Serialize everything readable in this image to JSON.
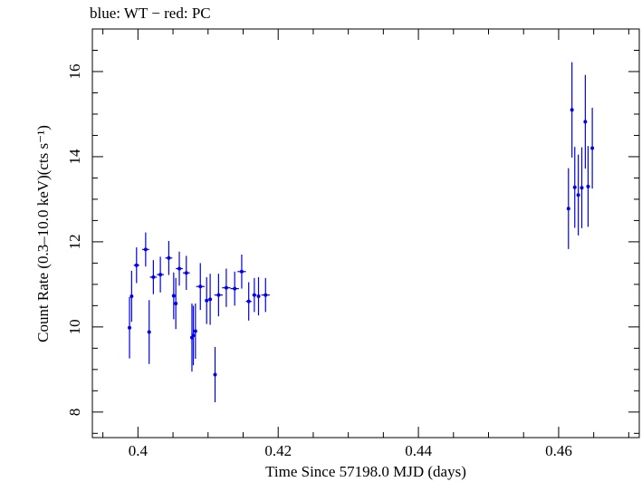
{
  "chart_data": {
    "type": "scatter",
    "title": "blue: WT − red: PC",
    "xlabel": "Time Since 57198.0 MJD (days)",
    "ylabel": "Count Rate (0.3–10.0 keV)(cts s⁻¹)",
    "xlim": [
      0.3935,
      0.4715
    ],
    "ylim": [
      7.4,
      17.0
    ],
    "x_ticks": [
      0.4,
      0.42,
      0.44,
      0.46
    ],
    "x_tick_labels": [
      "0.4",
      "0.42",
      "0.44",
      "0.46"
    ],
    "y_ticks": [
      8,
      10,
      12,
      14,
      16
    ],
    "y_tick_labels": [
      "8",
      "10",
      "12",
      "14",
      "16"
    ],
    "grid": false,
    "series": [
      {
        "name": "WT",
        "color": "#0000ee",
        "points": [
          {
            "x": 0.3988,
            "y": 9.98,
            "xerr": 0.0,
            "yerr": 0.72
          },
          {
            "x": 0.3991,
            "y": 10.72,
            "xerr": 0.0,
            "yerr": 0.6
          },
          {
            "x": 0.3998,
            "y": 11.45,
            "xerr": 0.0004,
            "yerr": 0.42
          },
          {
            "x": 0.4011,
            "y": 11.82,
            "xerr": 0.0005,
            "yerr": 0.4
          },
          {
            "x": 0.4016,
            "y": 9.88,
            "xerr": 0.0,
            "yerr": 0.75
          },
          {
            "x": 0.4022,
            "y": 11.17,
            "xerr": 0.0005,
            "yerr": 0.4
          },
          {
            "x": 0.4032,
            "y": 11.23,
            "xerr": 0.0005,
            "yerr": 0.42
          },
          {
            "x": 0.4044,
            "y": 11.62,
            "xerr": 0.0005,
            "yerr": 0.4
          },
          {
            "x": 0.4051,
            "y": 10.73,
            "xerr": 0.0,
            "yerr": 0.55
          },
          {
            "x": 0.4054,
            "y": 10.55,
            "xerr": 0.0,
            "yerr": 0.6
          },
          {
            "x": 0.4059,
            "y": 11.37,
            "xerr": 0.0005,
            "yerr": 0.4
          },
          {
            "x": 0.4069,
            "y": 11.27,
            "xerr": 0.0005,
            "yerr": 0.4
          },
          {
            "x": 0.4077,
            "y": 9.75,
            "xerr": 0.0,
            "yerr": 0.8
          },
          {
            "x": 0.4079,
            "y": 9.8,
            "xerr": 0.0,
            "yerr": 0.7
          },
          {
            "x": 0.4082,
            "y": 9.9,
            "xerr": 0.0,
            "yerr": 0.65
          },
          {
            "x": 0.4089,
            "y": 10.95,
            "xerr": 0.0006,
            "yerr": 0.55
          },
          {
            "x": 0.4098,
            "y": 10.62,
            "xerr": 0.0,
            "yerr": 0.55
          },
          {
            "x": 0.4103,
            "y": 10.65,
            "xerr": 0.0,
            "yerr": 0.6
          },
          {
            "x": 0.411,
            "y": 8.88,
            "xerr": 0.0,
            "yerr": 0.65
          },
          {
            "x": 0.4115,
            "y": 10.75,
            "xerr": 0.0006,
            "yerr": 0.5
          },
          {
            "x": 0.4126,
            "y": 10.92,
            "xerr": 0.0006,
            "yerr": 0.45
          },
          {
            "x": 0.4138,
            "y": 10.9,
            "xerr": 0.0006,
            "yerr": 0.4
          },
          {
            "x": 0.4148,
            "y": 11.3,
            "xerr": 0.0006,
            "yerr": 0.4
          },
          {
            "x": 0.4158,
            "y": 10.6,
            "xerr": 0.0004,
            "yerr": 0.45
          },
          {
            "x": 0.4166,
            "y": 10.75,
            "xerr": 0.0003,
            "yerr": 0.4
          },
          {
            "x": 0.4172,
            "y": 10.72,
            "xerr": 0.0,
            "yerr": 0.45
          },
          {
            "x": 0.4182,
            "y": 10.75,
            "xerr": 0.0006,
            "yerr": 0.4
          },
          {
            "x": 0.4614,
            "y": 12.78,
            "xerr": 0.0,
            "yerr": 0.95
          },
          {
            "x": 0.4619,
            "y": 15.1,
            "xerr": 0.0,
            "yerr": 1.12
          },
          {
            "x": 0.4623,
            "y": 13.28,
            "xerr": 0.0,
            "yerr": 0.95
          },
          {
            "x": 0.4628,
            "y": 13.1,
            "xerr": 0.0,
            "yerr": 0.95
          },
          {
            "x": 0.4633,
            "y": 13.27,
            "xerr": 0.0,
            "yerr": 0.95
          },
          {
            "x": 0.4638,
            "y": 14.82,
            "xerr": 0.0,
            "yerr": 1.1
          },
          {
            "x": 0.4642,
            "y": 13.3,
            "xerr": 0.0,
            "yerr": 0.95
          },
          {
            "x": 0.4648,
            "y": 14.2,
            "xerr": 0.0,
            "yerr": 0.95
          }
        ]
      }
    ]
  }
}
